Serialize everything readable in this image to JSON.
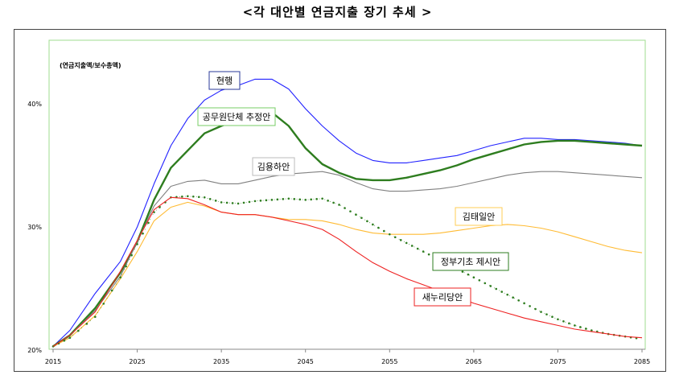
{
  "title": "<각 대안별 연금지출 장기 추세 >",
  "chart_data": {
    "type": "line",
    "title": "<각 대안별 연금지출 장기 추세 >",
    "ylabel": "(연금지출액/보수총액)",
    "xlabel": "",
    "xlim": [
      2015,
      2085
    ],
    "ylim": [
      20,
      45
    ],
    "x_ticks": [
      "2015",
      "2025",
      "2035",
      "2045",
      "2055",
      "2065",
      "2075",
      "2085"
    ],
    "y_ticks": [
      "20%",
      "30%",
      "40%"
    ],
    "x": [
      2015,
      2017,
      2020,
      2023,
      2025,
      2027,
      2029,
      2031,
      2033,
      2035,
      2037,
      2039,
      2041,
      2043,
      2045,
      2047,
      2049,
      2051,
      2053,
      2055,
      2057,
      2059,
      2061,
      2063,
      2065,
      2067,
      2069,
      2071,
      2073,
      2075,
      2077,
      2079,
      2081,
      2083,
      2085
    ],
    "series": [
      {
        "name": "현행",
        "color": "#2222ff",
        "style": "solid",
        "values": [
          20.3,
          21.6,
          24.6,
          27.2,
          30.0,
          33.5,
          36.6,
          38.8,
          40.3,
          41.1,
          41.5,
          42.0,
          42.0,
          41.2,
          39.6,
          38.2,
          37.0,
          36.0,
          35.4,
          35.2,
          35.2,
          35.4,
          35.6,
          35.8,
          36.2,
          36.6,
          36.9,
          37.2,
          37.2,
          37.1,
          37.1,
          37.0,
          36.9,
          36.8,
          36.6
        ]
      },
      {
        "name": "공무원단체 추정안",
        "color": "#2e7d1f",
        "style": "bold",
        "values": [
          20.3,
          21.2,
          23.4,
          26.3,
          28.8,
          32.2,
          34.8,
          36.2,
          37.6,
          38.2,
          38.7,
          39.2,
          39.3,
          38.2,
          36.4,
          35.1,
          34.4,
          33.9,
          33.8,
          33.8,
          34.0,
          34.3,
          34.6,
          35.0,
          35.5,
          35.9,
          36.3,
          36.7,
          36.9,
          37.0,
          37.0,
          36.9,
          36.8,
          36.7,
          36.6
        ]
      },
      {
        "name": "김용하안",
        "color": "#808080",
        "style": "solid",
        "values": [
          20.3,
          21.2,
          23.2,
          26.0,
          28.8,
          31.7,
          33.3,
          33.7,
          33.8,
          33.5,
          33.5,
          33.8,
          34.1,
          34.3,
          34.4,
          34.5,
          34.2,
          33.6,
          33.1,
          32.9,
          32.9,
          33.0,
          33.1,
          33.3,
          33.6,
          33.9,
          34.2,
          34.4,
          34.5,
          34.5,
          34.4,
          34.3,
          34.2,
          34.1,
          34.0
        ]
      },
      {
        "name": "김태일안",
        "color": "#ffbb33",
        "style": "solid",
        "values": [
          20.3,
          21.0,
          22.8,
          25.8,
          28.0,
          30.5,
          31.6,
          32.0,
          31.7,
          31.2,
          31.0,
          31.0,
          30.8,
          30.6,
          30.6,
          30.5,
          30.2,
          29.8,
          29.5,
          29.4,
          29.4,
          29.4,
          29.5,
          29.7,
          29.9,
          30.1,
          30.2,
          30.1,
          29.9,
          29.6,
          29.2,
          28.8,
          28.4,
          28.1,
          27.9
        ]
      },
      {
        "name": "정부기초 제시안",
        "color": "#2e7d1f",
        "style": "dotted",
        "values": [
          20.3,
          21.0,
          22.7,
          25.9,
          28.6,
          31.2,
          32.4,
          32.5,
          32.4,
          32.0,
          31.9,
          32.1,
          32.2,
          32.3,
          32.2,
          32.3,
          31.8,
          31.0,
          30.2,
          29.4,
          28.7,
          28.0,
          27.3,
          26.6,
          25.9,
          25.2,
          24.5,
          23.8,
          23.1,
          22.5,
          22.0,
          21.6,
          21.3,
          21.1,
          20.9
        ]
      },
      {
        "name": "새누리당안",
        "color": "#ee2222",
        "style": "solid",
        "values": [
          20.3,
          21.2,
          23.1,
          26.4,
          28.9,
          31.4,
          32.4,
          32.3,
          31.8,
          31.2,
          31.0,
          31.0,
          30.8,
          30.5,
          30.2,
          29.8,
          29.0,
          28.0,
          27.1,
          26.4,
          25.8,
          25.3,
          24.8,
          24.3,
          23.8,
          23.4,
          23.0,
          22.6,
          22.3,
          22.0,
          21.7,
          21.5,
          21.3,
          21.1,
          21.0
        ]
      }
    ],
    "annotations": [
      "현행",
      "공무원단체 추정안",
      "김용하안",
      "김태일안",
      "정부기초 제시안",
      "새누리당안"
    ],
    "grid": false,
    "legend": "inline labels"
  }
}
